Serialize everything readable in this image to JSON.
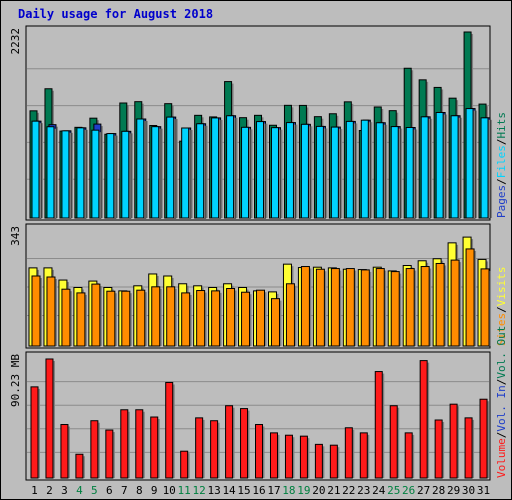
{
  "page": {
    "title": "Daily usage for August 2018"
  },
  "colors": {
    "background": "#bdbdbd",
    "panel": "#bdbdbd",
    "grid": "#8c8c8c",
    "hits": "#007a52",
    "files": "#00d4ff",
    "pages": "#1f3ec9",
    "visits": "#ffff33",
    "sites": "#ff8c00",
    "volume": "#ff1a1a",
    "title": "#0000cc",
    "weekend_label": "#008040"
  },
  "chart_data": [
    {
      "type": "bar",
      "panel": "hits-files-pages",
      "categories": [
        "1",
        "2",
        "3",
        "4",
        "5",
        "6",
        "7",
        "8",
        "9",
        "10",
        "11",
        "12",
        "13",
        "14",
        "15",
        "16",
        "17",
        "18",
        "19",
        "20",
        "21",
        "22",
        "23",
        "24",
        "25",
        "26",
        "27",
        "28",
        "29",
        "30",
        "31"
      ],
      "weekend_days": [
        "4",
        "5",
        "11",
        "12",
        "18",
        "19",
        "25",
        "26"
      ],
      "ylim": [
        0,
        2232
      ],
      "ytick_label": "2232",
      "series": [
        {
          "name": "Hits",
          "values": [
            1286,
            1551,
            1043,
            1088,
            1198,
            1005,
            1380,
            1396,
            1110,
            1372,
            922,
            1232,
            1213,
            1637,
            1204,
            1232,
            1113,
            1352,
            1351,
            1216,
            1251,
            1394,
            1050,
            1332,
            1288,
            1797,
            1658,
            1567,
            1438,
            2232,
            1367
          ]
        },
        {
          "name": "Files",
          "values": [
            1162,
            1095,
            1046,
            1082,
            1054,
            1013,
            1040,
            1188,
            1096,
            1211,
            1080,
            1131,
            1201,
            1227,
            1088,
            1157,
            1084,
            1145,
            1124,
            1099,
            1091,
            1159,
            1174,
            1143,
            1097,
            1086,
            1214,
            1266,
            1227,
            1313,
            1202
          ]
        },
        {
          "name": "Pages",
          "values": [
            1162,
            1120,
            1046,
            1082,
            1127,
            1013,
            1040,
            1188,
            1096,
            1211,
            1080,
            1131,
            1201,
            1227,
            1088,
            1157,
            1084,
            1145,
            1124,
            1099,
            1091,
            1159,
            1174,
            1143,
            1097,
            1086,
            1214,
            1266,
            1227,
            1313,
            1202
          ]
        }
      ],
      "right_label_parts": [
        "Pages",
        "Files",
        "Hits"
      ]
    },
    {
      "type": "bar",
      "panel": "visits-sites",
      "categories": [
        "1",
        "2",
        "3",
        "4",
        "5",
        "6",
        "7",
        "8",
        "9",
        "10",
        "11",
        "12",
        "13",
        "14",
        "15",
        "16",
        "17",
        "18",
        "19",
        "20",
        "21",
        "22",
        "23",
        "24",
        "25",
        "26",
        "27",
        "28",
        "29",
        "30",
        "31"
      ],
      "ylim": [
        0,
        343
      ],
      "ytick_label": "343",
      "series": [
        {
          "name": "Visits",
          "values": [
            231,
            231,
            195,
            173,
            192,
            173,
            163,
            178,
            213,
            207,
            184,
            178,
            173,
            184,
            173,
            163,
            160,
            242,
            232,
            233,
            231,
            227,
            226,
            233,
            222,
            238,
            252,
            258,
            305,
            322,
            256
          ]
        },
        {
          "name": "Sites",
          "values": [
            207,
            204,
            168,
            157,
            183,
            162,
            162,
            165,
            175,
            175,
            157,
            164,
            163,
            170,
            159,
            165,
            140,
            184,
            235,
            227,
            229,
            229,
            225,
            229,
            220,
            229,
            235,
            244,
            254,
            287,
            228
          ]
        }
      ],
      "right_label_parts": [
        "Sites",
        "Visits"
      ]
    },
    {
      "type": "bar",
      "panel": "volume",
      "categories": [
        "1",
        "2",
        "3",
        "4",
        "5",
        "6",
        "7",
        "8",
        "9",
        "10",
        "11",
        "12",
        "13",
        "14",
        "15",
        "16",
        "17",
        "18",
        "19",
        "20",
        "21",
        "22",
        "23",
        "24",
        "25",
        "26",
        "27",
        "28",
        "29",
        "30",
        "31"
      ],
      "ylim": [
        0,
        90.23
      ],
      "ytick_label": "90.23 MB",
      "series": [
        {
          "name": "Volume",
          "values": [
            68.53,
            89.49,
            40.22,
            17.86,
            43.07,
            36.06,
            51.31,
            51.31,
            45.85,
            71.84,
            20.15,
            45.22,
            43.07,
            54.34,
            52.19,
            40.22,
            33.94,
            32.17,
            31.46,
            25.29,
            24.67,
            37.77,
            33.94,
            80.04,
            54.34,
            33.94,
            88.27,
            43.61,
            55.51,
            45.22,
            59.23
          ]
        }
      ],
      "right_label_parts": [
        "Volume",
        "Vol. In",
        "Vol. Out"
      ]
    }
  ]
}
